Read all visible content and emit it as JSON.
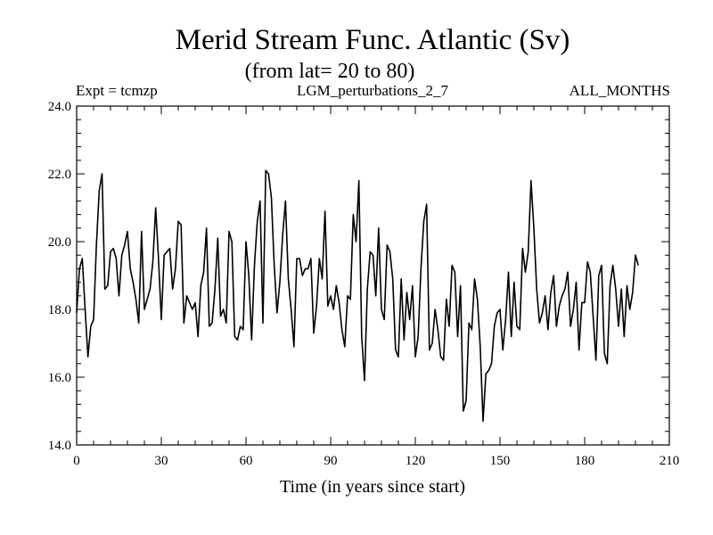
{
  "chart_data": {
    "type": "line",
    "title": "Merid Stream Func. Atlantic (Sv)",
    "subtitle": "(from lat= 20 to 80)",
    "header_left": "Expt = tcmzp",
    "header_center": "LGM_perturbations_2_7",
    "header_right": "ALL_MONTHS",
    "xlabel": "Time (in years since start)",
    "ylabel": "",
    "xlim": [
      0,
      210
    ],
    "ylim": [
      14,
      24
    ],
    "xticks": [
      0,
      30,
      60,
      90,
      120,
      150,
      180,
      210
    ],
    "xtick_labels": [
      "0",
      "30",
      "60",
      "90",
      "120",
      "150",
      "180",
      "210"
    ],
    "yticks": [
      14,
      16,
      18,
      20,
      22,
      24
    ],
    "ytick_labels": [
      "14.0",
      "16.0",
      "18.0",
      "20.0",
      "22.0",
      "24.0"
    ],
    "grid": false,
    "series": [
      {
        "name": "Merid Stream Func. Atlantic",
        "color": "#000000",
        "x": [
          0,
          1,
          2,
          3,
          4,
          5,
          6,
          7,
          8,
          9,
          10,
          11,
          12,
          13,
          14,
          15,
          16,
          17,
          18,
          19,
          20,
          21,
          22,
          23,
          24,
          25,
          26,
          27,
          28,
          29,
          30,
          31,
          32,
          33,
          34,
          35,
          36,
          37,
          38,
          39,
          40,
          41,
          42,
          43,
          44,
          45,
          46,
          47,
          48,
          49,
          50,
          51,
          52,
          53,
          54,
          55,
          56,
          57,
          58,
          59,
          60,
          61,
          62,
          63,
          64,
          65,
          66,
          67,
          68,
          69,
          70,
          71,
          72,
          73,
          74,
          75,
          76,
          77,
          78,
          79,
          80,
          81,
          82,
          83,
          84,
          85,
          86,
          87,
          88,
          89,
          90,
          91,
          92,
          93,
          94,
          95,
          96,
          97,
          98,
          99,
          100,
          101,
          102,
          103,
          104,
          105,
          106,
          107,
          108,
          109,
          110,
          111,
          112,
          113,
          114,
          115,
          116,
          117,
          118,
          119,
          120,
          121,
          122,
          123,
          124,
          125,
          126,
          127,
          128,
          129,
          130,
          131,
          132,
          133,
          134,
          135,
          136,
          137,
          138,
          139,
          140,
          141,
          142,
          143,
          144,
          145,
          146,
          147,
          148,
          149,
          150,
          151,
          152,
          153,
          154,
          155,
          156,
          157,
          158,
          159,
          160,
          161,
          162,
          163,
          164,
          165,
          166,
          167,
          168,
          169,
          170,
          171,
          172,
          173,
          174,
          175,
          176,
          177,
          178,
          179,
          180,
          181,
          182,
          183,
          184,
          185,
          186,
          187,
          188,
          189,
          190,
          191,
          192,
          193,
          194,
          195,
          196,
          197,
          198,
          199
        ],
        "values": [
          17.9,
          19.2,
          19.5,
          18.0,
          16.6,
          17.5,
          17.7,
          19.9,
          21.5,
          22.0,
          18.6,
          18.7,
          19.7,
          19.8,
          19.5,
          18.4,
          19.6,
          19.9,
          20.3,
          19.2,
          18.8,
          18.3,
          17.6,
          20.3,
          18.0,
          18.3,
          18.6,
          19.4,
          21.0,
          19.5,
          17.7,
          19.6,
          19.7,
          19.8,
          18.6,
          19.2,
          20.6,
          20.5,
          17.6,
          18.4,
          18.2,
          18.0,
          18.2,
          17.2,
          18.7,
          19.1,
          20.4,
          17.5,
          17.6,
          18.6,
          20.1,
          17.8,
          18.0,
          17.6,
          20.3,
          20.0,
          17.2,
          17.1,
          17.5,
          17.4,
          20.0,
          19.0,
          17.1,
          19.3,
          20.6,
          21.2,
          17.6,
          22.1,
          22.0,
          21.3,
          19.3,
          17.9,
          18.8,
          20.2,
          21.2,
          18.9,
          18.0,
          16.9,
          19.5,
          19.5,
          19.0,
          19.2,
          19.2,
          19.5,
          17.3,
          18.1,
          19.5,
          18.9,
          20.9,
          18.1,
          18.4,
          18.0,
          18.7,
          18.2,
          17.4,
          16.9,
          18.4,
          18.3,
          20.8,
          20.0,
          21.8,
          17.2,
          15.9,
          18.6,
          19.7,
          19.6,
          18.4,
          20.4,
          18.0,
          17.7,
          19.9,
          19.7,
          18.9,
          16.8,
          16.6,
          18.9,
          17.1,
          18.5,
          17.7,
          18.7,
          16.6,
          17.2,
          19.2,
          20.6,
          21.1,
          16.8,
          17.0,
          18.0,
          17.4,
          16.6,
          16.5,
          18.3,
          17.5,
          19.3,
          19.1,
          17.2,
          18.7,
          15.0,
          15.3,
          17.6,
          17.4,
          18.9,
          18.3,
          16.9,
          14.7,
          16.1,
          16.2,
          16.4,
          17.5,
          17.9,
          18.0,
          16.8,
          17.7,
          19.1,
          17.2,
          18.8,
          17.5,
          17.4,
          19.8,
          19.1,
          19.7,
          21.8,
          20.4,
          18.6,
          17.6,
          17.9,
          18.4,
          17.4,
          18.5,
          19.0,
          17.5,
          18.1,
          18.4,
          18.6,
          19.1,
          17.5,
          18.0,
          18.8,
          16.8,
          18.2,
          18.2,
          19.4,
          19.1,
          17.8,
          16.5,
          19.0,
          19.3,
          16.7,
          16.4,
          18.7,
          19.3,
          18.6,
          17.5,
          18.6,
          17.2,
          18.7,
          18.0,
          18.5,
          19.6,
          19.3
        ]
      }
    ]
  }
}
